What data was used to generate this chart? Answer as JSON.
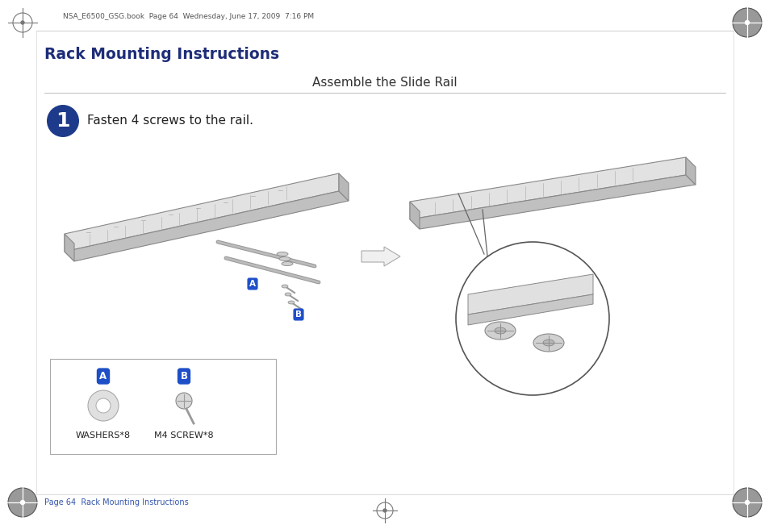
{
  "title": "Rack Mounting Instructions",
  "title_color": "#1e2d78",
  "subtitle": "Assemble the Slide Rail",
  "subtitle_color": "#333333",
  "step_number": "1",
  "step_text": "Fasten 4 screws to the rail.",
  "step_bg_color": "#1e3a8a",
  "footer_text": "Page 64  Rack Mounting Instructions",
  "footer_color": "#3355aa",
  "header_note": "NSA_E6500_GSG.book  Page 64  Wednesday, June 17, 2009  7:16 PM",
  "parts_label_a": "WASHERS*8",
  "parts_label_b": "M4 SCREW*8",
  "bg_color": "#ffffff",
  "rail_color": "#d8d8d8",
  "rail_edge_color": "#888888",
  "label_a_color": "#1e4fc8",
  "label_b_color": "#1e4fc8"
}
